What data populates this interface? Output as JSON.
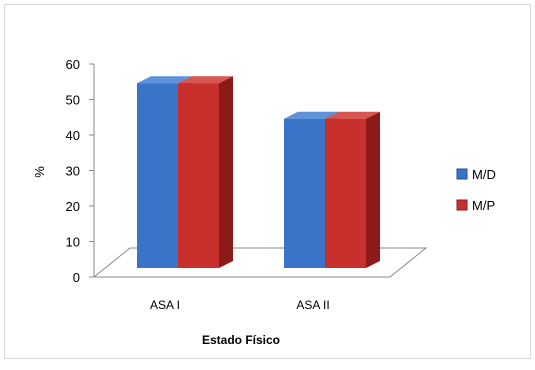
{
  "chart_data": {
    "type": "bar",
    "categories": [
      "ASA I",
      "ASA II"
    ],
    "series": [
      {
        "name": "M/D",
        "values": [
          56,
          46
        ]
      },
      {
        "name": "M/P",
        "values": [
          56,
          46
        ]
      }
    ],
    "xlabel": "Estado Físico",
    "ylabel": "%",
    "ylim": [
      0,
      60
    ],
    "yticks": [
      0,
      10,
      20,
      30,
      40,
      50,
      60
    ],
    "grid": false,
    "legend": "right",
    "colors": {
      "M/D": {
        "front": "#3A74C8",
        "side": "#24508E",
        "top": "#5E93DB"
      },
      "M/P": {
        "front": "#C8302E",
        "side": "#8C1A18",
        "top": "#D85552"
      }
    }
  }
}
